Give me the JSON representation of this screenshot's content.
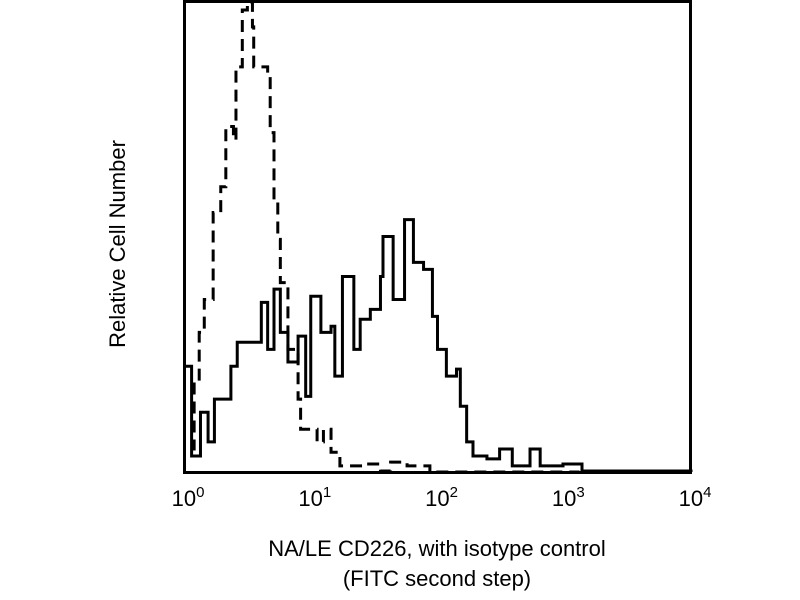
{
  "chart_data": {
    "type": "line",
    "title": "",
    "xlabel_line1": "NA/LE CD226, with isotype control",
    "xlabel_line2": "(FITC second step)",
    "ylabel": "Relative Cell Number",
    "x_scale": "log10",
    "xlim_log10": [
      0,
      4
    ],
    "ylim": [
      0,
      100
    ],
    "x_ticks": [
      {
        "base": "10",
        "exp": "0"
      },
      {
        "base": "10",
        "exp": "1"
      },
      {
        "base": "10",
        "exp": "2"
      },
      {
        "base": "10",
        "exp": "3"
      },
      {
        "base": "10",
        "exp": "4"
      }
    ],
    "grid": false,
    "series": [
      {
        "name": "isotype control",
        "style": "dashed",
        "color": "#000000",
        "x_log10": [
          0.06,
          0.08,
          0.12,
          0.16,
          0.23,
          0.29,
          0.33,
          0.39,
          0.41,
          0.46,
          0.5,
          0.54,
          0.55,
          0.66,
          0.68,
          0.71,
          0.74,
          0.76,
          0.82,
          0.9,
          0.92,
          1.05,
          1.1,
          1.16,
          1.23,
          1.41,
          1.55,
          1.63,
          1.76,
          1.94,
          3.12
        ],
        "y": [
          4.9,
          19.1,
          29.7,
          36.7,
          55.2,
          60.7,
          73.5,
          70.7,
          86.2,
          98.3,
          100,
          94.7,
          86.2,
          84.1,
          72.2,
          58.0,
          49.5,
          40.3,
          26.1,
          15.5,
          9.1,
          6.4,
          9.1,
          4.2,
          1.3,
          1.7,
          0.2,
          2.1,
          1.3,
          0,
          0
        ]
      },
      {
        "name": "NA/LE CD226",
        "style": "solid",
        "color": "#000000",
        "x_log10": [
          0,
          0.06,
          0.13,
          0.19,
          0.24,
          0.37,
          0.42,
          0.53,
          0.61,
          0.66,
          0.71,
          0.76,
          0.82,
          0.9,
          0.96,
          1.0,
          1.08,
          1.16,
          1.19,
          1.25,
          1.34,
          1.39,
          1.47,
          1.55,
          1.57,
          1.65,
          1.74,
          1.81,
          1.89,
          1.96,
          2.0,
          2.07,
          2.15,
          2.18,
          2.23,
          2.28,
          2.39,
          2.49,
          2.59,
          2.73,
          2.81,
          2.99,
          3.14,
          4.0
        ],
        "y": [
          22.5,
          3.4,
          12.7,
          6.4,
          15.5,
          22.5,
          27.6,
          27.6,
          36.1,
          26.1,
          38.9,
          29.7,
          23.4,
          28.9,
          16.1,
          37.4,
          29.7,
          31.0,
          20.4,
          41.6,
          26.1,
          32.5,
          34.6,
          41.6,
          50.1,
          36.7,
          53.7,
          44.6,
          43.1,
          33.1,
          26.1,
          20.4,
          21.9,
          14.0,
          6.4,
          3.4,
          2.8,
          4.9,
          1.3,
          4.9,
          1.3,
          1.7,
          0.2,
          0
        ]
      }
    ]
  }
}
